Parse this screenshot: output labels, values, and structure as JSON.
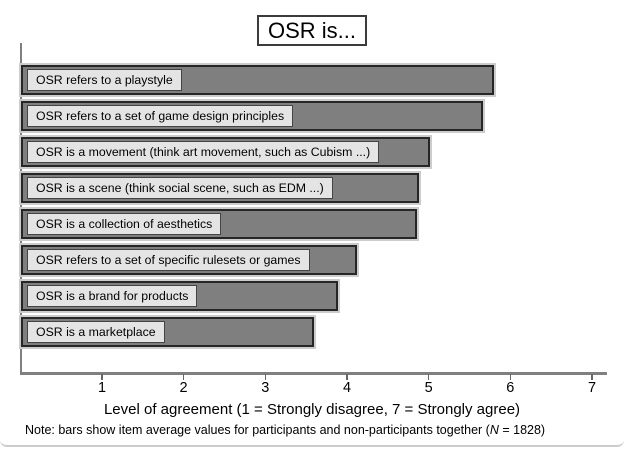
{
  "chart": {
    "title": "OSR is...",
    "xlabel": "Level of agreement (1 = Strongly disagree, 7 = Strongly agree)"
  },
  "note": {
    "prefix": "Note: bars show item average values for participants and non-participants together (",
    "n_symbol": "N",
    "suffix": " = 1828)"
  },
  "chart_data": {
    "type": "bar",
    "orientation": "horizontal",
    "title": "OSR is...",
    "categories": [
      "OSR refers to a playstyle",
      "OSR refers to a set of game design principles",
      "OSR is a movement (think art movement, such as Cubism ...)",
      "OSR is a scene (think social scene, such as EDM ...)",
      "OSR is a collection of aesthetics",
      "OSR refers to a set of specific rulesets or games",
      "OSR is a brand for products",
      "OSR is a marketplace"
    ],
    "values": [
      5.79,
      5.66,
      5.01,
      4.87,
      4.85,
      4.11,
      3.88,
      3.59
    ],
    "xlabel": "Level of agreement (1 = Strongly disagree, 7 = Strongly agree)",
    "ylabel": "",
    "xlim": [
      0,
      7
    ],
    "xticks": [
      1,
      2,
      3,
      4,
      5,
      6,
      7
    ],
    "grid": false,
    "legend": "none",
    "note": "Note: bars show item average values for participants and non-participants together (N = 1828)",
    "colors": {
      "bar_fill": "#7f7f7f",
      "bar_border": "#262626",
      "bar_halo": "#cccccc",
      "label_box_fill": "#e4e4e4",
      "label_box_border": "#444444",
      "axis_line": "#808080",
      "text": "#000000",
      "window_bottom_edge": "#cccccc"
    }
  }
}
